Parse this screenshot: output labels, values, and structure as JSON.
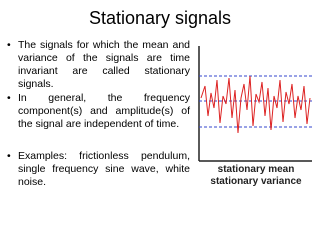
{
  "title": "Stationary signals",
  "bullets": [
    "The signals for which the mean and variance of the signals are time invariant are called stationary signals.",
    "In general, the frequency component(s) and amplitude(s) of the signal are independent of time.",
    "Examples: frictionless pendulum, single frequency sine wave, white noise."
  ],
  "figure": {
    "labels": [
      "stationary mean",
      "stationary variance"
    ]
  }
}
